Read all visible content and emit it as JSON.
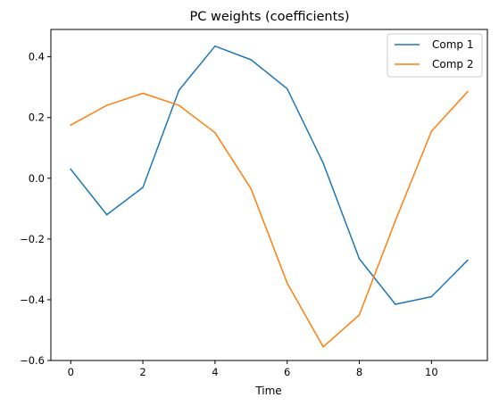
{
  "chart_data": {
    "type": "line",
    "title": "PC weights (coefficients)",
    "xlabel": "Time",
    "ylabel": "",
    "x": [
      0,
      1,
      2,
      3,
      4,
      5,
      6,
      7,
      8,
      9,
      10,
      11
    ],
    "xlim": [
      -0.55,
      11.55
    ],
    "ylim": [
      -0.6,
      0.49
    ],
    "xticks": [
      0,
      2,
      4,
      6,
      8,
      10
    ],
    "yticks": [
      0.4,
      0.2,
      0.0,
      -0.2,
      -0.4,
      -0.6
    ],
    "xtick_labels": [
      "0",
      "2",
      "4",
      "6",
      "8",
      "10"
    ],
    "ytick_labels": [
      "0.4",
      "0.2",
      "0.0",
      "−0.2",
      "−0.4",
      "−0.6"
    ],
    "grid": false,
    "legend_position": "upper right",
    "series": [
      {
        "name": "Comp 1",
        "color": "#1f77b4",
        "values": [
          0.03,
          -0.12,
          -0.03,
          0.29,
          0.435,
          0.39,
          0.295,
          0.05,
          -0.265,
          -0.415,
          -0.39,
          -0.27
        ]
      },
      {
        "name": "Comp 2",
        "color": "#ff7f0e",
        "values": [
          0.175,
          0.24,
          0.28,
          0.24,
          0.15,
          -0.035,
          -0.345,
          -0.555,
          -0.45,
          -0.14,
          0.155,
          0.285
        ]
      }
    ]
  }
}
